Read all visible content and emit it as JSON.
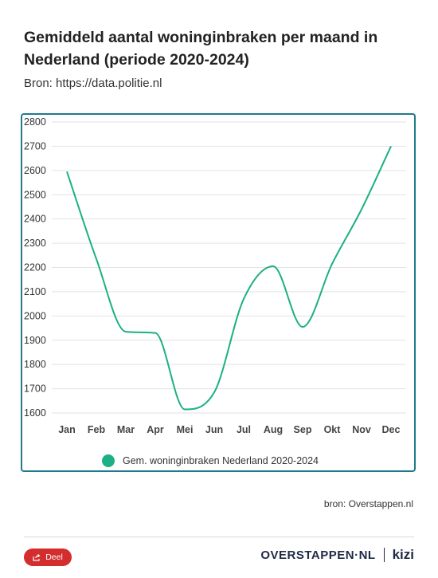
{
  "header": {
    "title": "Gemiddeld aantal woninginbraken per maand in Nederland (periode 2020-2024)",
    "source": "Bron: https://data.politie.nl"
  },
  "chart_data": {
    "type": "line",
    "title": "",
    "xlabel": "",
    "ylabel": "",
    "categories": [
      "Jan",
      "Feb",
      "Mar",
      "Apr",
      "Mei",
      "Jun",
      "Jul",
      "Aug",
      "Sep",
      "Okt",
      "Nov",
      "Dec"
    ],
    "series": [
      {
        "name": "Gem. woninginbraken Nederland 2020-2024",
        "values": [
          2595,
          2235,
          1935,
          1930,
          1615,
          1685,
          2070,
          2205,
          1955,
          2215,
          2440,
          2700
        ],
        "color": "#1bb085"
      }
    ],
    "ylim": [
      1600,
      2800
    ],
    "yticks": [
      1600,
      1700,
      1800,
      1900,
      2000,
      2100,
      2200,
      2300,
      2400,
      2500,
      2600,
      2700,
      2800
    ],
    "grid": true,
    "legend_position": "bottom"
  },
  "footer": {
    "source": "bron: Overstappen.nl",
    "share_label": "Deel",
    "brand": "OVERSTAPPEN·NL",
    "brand_partner": "kizi",
    "accent_color": "#d42d2d",
    "frame_color": "#1f7a8c"
  }
}
